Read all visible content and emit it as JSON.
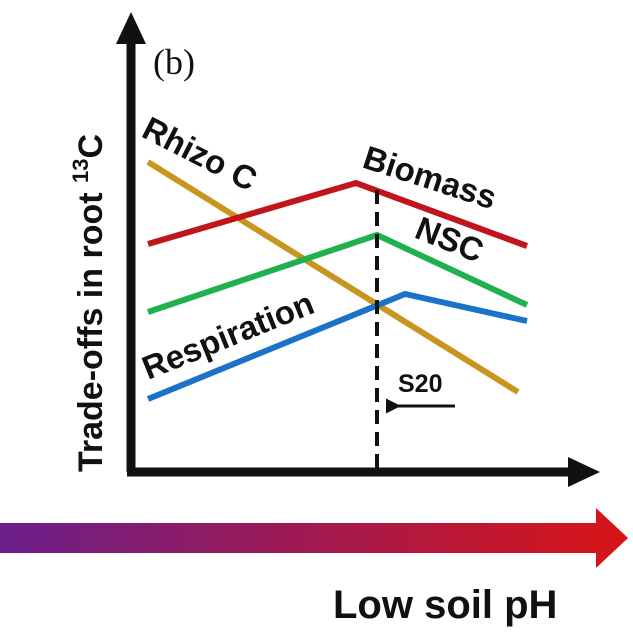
{
  "panel_label": "(b)",
  "y_axis": {
    "label_main": "Trade-offs in root ",
    "label_sup": "13",
    "label_end": "C"
  },
  "x_axis": {
    "label": "Low soil pH"
  },
  "threshold": {
    "label": "S20"
  },
  "series": [
    {
      "name": "Biomass",
      "color": "#c0151b"
    },
    {
      "name": "NSC",
      "color": "#1fb04f"
    },
    {
      "name": "Respiration",
      "color": "#1a73c9"
    },
    {
      "name": "Rhizo C",
      "color": "#c8951e"
    }
  ],
  "gradient": {
    "from": "#6a1f8a",
    "to": "#d4151b"
  }
}
